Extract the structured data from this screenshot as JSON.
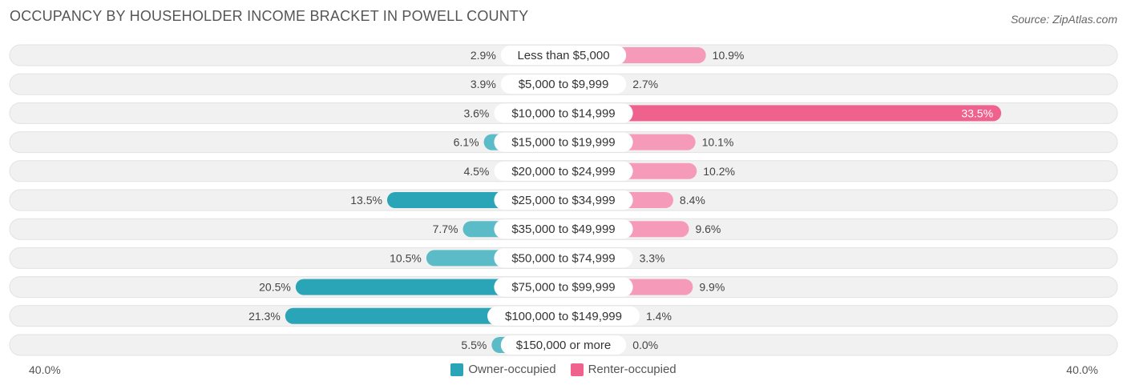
{
  "title": "OCCUPANCY BY HOUSEHOLDER INCOME BRACKET IN POWELL COUNTY",
  "source": "Source: ZipAtlas.com",
  "colors": {
    "owner": "#5bbcc8",
    "owner_strong": "#2aa5b7",
    "renter": "#f59ab8",
    "renter_strong": "#f0628e",
    "row_bg": "#f1f1f1"
  },
  "chart_data": {
    "type": "bar",
    "orientation": "horizontal-diverging",
    "axis_min_label": "40.0%",
    "axis_max_label": "40.0%",
    "xlim": [
      -40,
      40
    ],
    "categories": [
      "Less than $5,000",
      "$5,000 to $9,999",
      "$10,000 to $14,999",
      "$15,000 to $19,999",
      "$20,000 to $24,999",
      "$25,000 to $34,999",
      "$35,000 to $49,999",
      "$50,000 to $74,999",
      "$75,000 to $99,999",
      "$100,000 to $149,999",
      "$150,000 or more"
    ],
    "series": [
      {
        "name": "Owner-occupied",
        "values": [
          2.9,
          3.9,
          3.6,
          6.1,
          4.5,
          13.5,
          7.7,
          10.5,
          20.5,
          21.3,
          5.5
        ],
        "labels": [
          "2.9%",
          "3.9%",
          "3.6%",
          "6.1%",
          "4.5%",
          "13.5%",
          "7.7%",
          "10.5%",
          "20.5%",
          "21.3%",
          "5.5%"
        ]
      },
      {
        "name": "Renter-occupied",
        "values": [
          10.9,
          2.7,
          33.5,
          10.1,
          10.2,
          8.4,
          9.6,
          3.3,
          9.9,
          1.4,
          0.0
        ],
        "labels": [
          "10.9%",
          "2.7%",
          "33.5%",
          "10.1%",
          "10.2%",
          "8.4%",
          "9.6%",
          "3.3%",
          "9.9%",
          "1.4%",
          "0.0%"
        ]
      }
    ],
    "legend_position": "bottom-center"
  }
}
